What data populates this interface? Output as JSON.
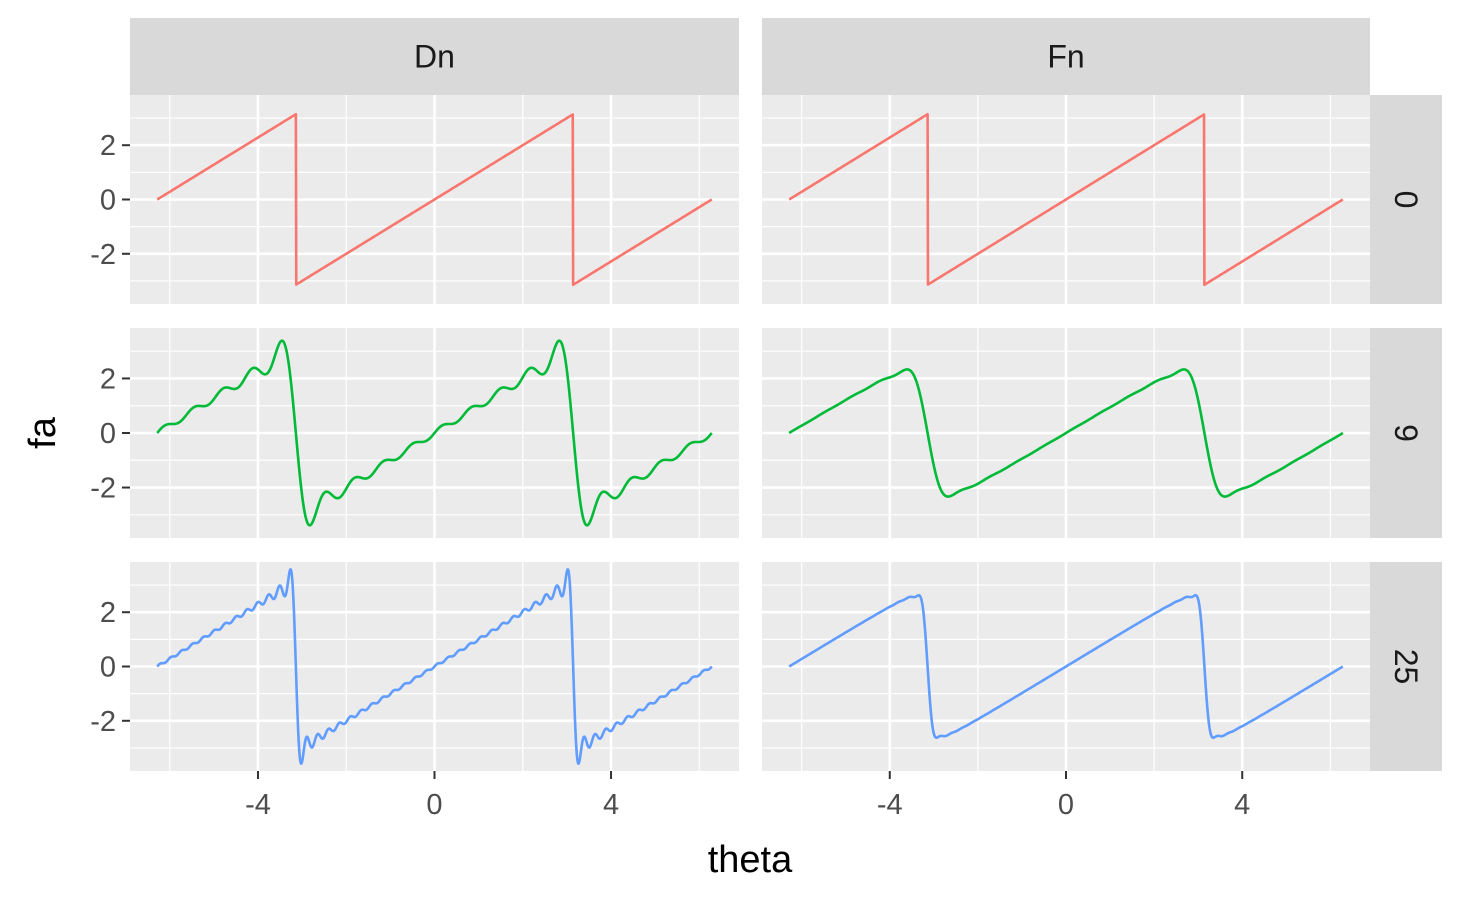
{
  "chart_data": {
    "type": "line",
    "facet_columns": [
      "Dn",
      "Fn"
    ],
    "facet_rows": [
      "0",
      "9",
      "25"
    ],
    "xlabel": "theta",
    "ylabel": "fa",
    "xlim": [
      -6.9,
      6.9
    ],
    "ylim": [
      -3.85,
      3.85
    ],
    "x_ticks": [
      -4,
      0,
      4
    ],
    "y_ticks": [
      -2,
      0,
      2
    ],
    "x_tick_labels": [
      "-4",
      "0",
      "4"
    ],
    "y_tick_labels": [
      "-2",
      "0",
      "2"
    ],
    "x_range": [
      -6.2832,
      6.2832
    ],
    "series": [
      {
        "row": "0",
        "column": "Dn",
        "color": "#F8766D",
        "kind": "sawtooth",
        "terms": 0
      },
      {
        "row": "0",
        "column": "Fn",
        "color": "#F8766D",
        "kind": "sawtooth",
        "terms": 0
      },
      {
        "row": "9",
        "column": "Dn",
        "color": "#00BA38",
        "kind": "dirichlet",
        "terms": 9
      },
      {
        "row": "9",
        "column": "Fn",
        "color": "#00BA38",
        "kind": "fejer",
        "terms": 9
      },
      {
        "row": "25",
        "column": "Dn",
        "color": "#619CFF",
        "kind": "dirichlet",
        "terms": 25
      },
      {
        "row": "25",
        "column": "Fn",
        "color": "#619CFF",
        "kind": "fejer",
        "terms": 25
      }
    ],
    "grid": true,
    "legend": "none"
  }
}
